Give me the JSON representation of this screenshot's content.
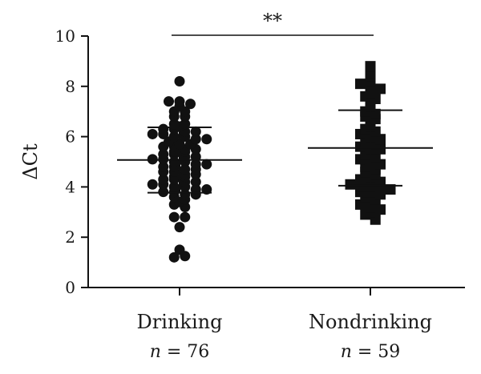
{
  "chart_data": {
    "type": "scatter",
    "title": "",
    "ylabel": "ΔCt",
    "ylim": [
      0,
      10
    ],
    "yticks": [
      "0",
      "2",
      "4",
      "6",
      "8",
      "10"
    ],
    "significance": "**",
    "groups": [
      {
        "category": "Drinking",
        "n_italic": "n",
        "n_rest": " = 76",
        "marker": "circle",
        "mean": 5.07,
        "sd_upper": 6.37,
        "sd_lower": 3.77,
        "values": [
          8.2,
          7.4,
          7.4,
          7.3,
          7.2,
          7.0,
          7.0,
          6.8,
          6.8,
          6.5,
          6.5,
          6.4,
          6.3,
          6.3,
          6.2,
          6.2,
          6.1,
          6.1,
          6.0,
          6.0,
          5.9,
          5.9,
          5.8,
          5.7,
          5.7,
          5.6,
          5.6,
          5.5,
          5.5,
          5.4,
          5.4,
          5.3,
          5.3,
          5.2,
          5.2,
          5.1,
          5.1,
          5.0,
          5.0,
          4.9,
          4.9,
          4.8,
          4.8,
          4.7,
          4.7,
          4.6,
          4.6,
          4.5,
          4.5,
          4.4,
          4.4,
          4.3,
          4.3,
          4.2,
          4.2,
          4.1,
          4.1,
          4.0,
          4.0,
          3.9,
          3.9,
          3.8,
          3.8,
          3.7,
          3.7,
          3.6,
          3.5,
          3.4,
          3.3,
          3.2,
          2.8,
          2.8,
          2.4,
          1.5,
          1.2,
          1.25
        ]
      },
      {
        "category": "Nondrinking",
        "n_italic": "n",
        "n_rest": " = 59",
        "marker": "square",
        "mean": 5.55,
        "sd_upper": 7.05,
        "sd_lower": 4.05,
        "values": [
          8.8,
          8.5,
          8.4,
          8.2,
          8.1,
          7.9,
          7.9,
          7.7,
          7.6,
          7.5,
          7.3,
          7.2,
          7.0,
          6.9,
          6.8,
          6.7,
          6.5,
          6.4,
          6.3,
          6.2,
          6.1,
          6.0,
          5.9,
          5.8,
          5.7,
          5.6,
          5.5,
          5.5,
          5.4,
          5.3,
          5.2,
          5.1,
          5.0,
          4.9,
          4.8,
          4.7,
          4.6,
          4.5,
          4.4,
          4.3,
          4.3,
          4.2,
          4.1,
          4.0,
          4.0,
          3.9,
          3.9,
          3.8,
          3.8,
          3.7,
          3.6,
          3.5,
          3.4,
          3.3,
          3.2,
          3.1,
          3.0,
          2.9,
          2.7
        ]
      }
    ]
  }
}
